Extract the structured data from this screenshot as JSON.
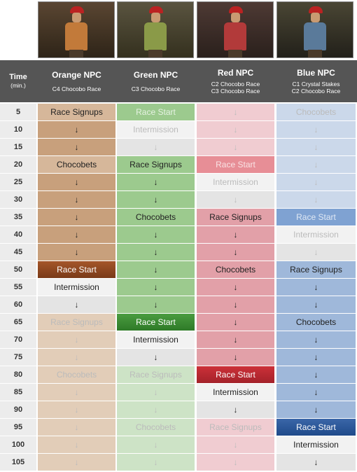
{
  "header": {
    "time_label": "Time",
    "time_unit": "(min.)",
    "npcs": [
      {
        "name": "Orange NPC",
        "races": [
          "C4 Chocobo Race"
        ],
        "icon": "orange-npc-portrait"
      },
      {
        "name": "Green NPC",
        "races": [
          "C3 Chocobo Race"
        ],
        "icon": "green-npc-portrait"
      },
      {
        "name": "Red NPC",
        "races": [
          "C2 Chocobo Race",
          "C3 Chocobo Race"
        ],
        "icon": "red-npc-portrait"
      },
      {
        "name": "Blue NPC",
        "races": [
          "C1 Crystal Stakes",
          "C2 Chocobo Race"
        ],
        "icon": "blue-npc-portrait"
      }
    ]
  },
  "colors": {
    "header_bg": "#555555",
    "orange": "#c8a07c",
    "green": "#9cca8e",
    "red": "#e2a0a8",
    "blue": "#9fb8da",
    "highlight_orange": "#8c4a24",
    "highlight_green": "#3d8a36",
    "highlight_red": "#b8262f",
    "highlight_blue": "#2a5290"
  },
  "rows": [
    {
      "time": "5",
      "cells": [
        "Race Signups",
        "Race Start",
        "↓",
        "Chocobets"
      ]
    },
    {
      "time": "10",
      "cells": [
        "↓",
        "Intermission",
        "↓",
        "↓"
      ]
    },
    {
      "time": "15",
      "cells": [
        "↓",
        "↓",
        "↓",
        "↓"
      ]
    },
    {
      "time": "20",
      "cells": [
        "Chocobets",
        "Race Signups",
        "Race Start",
        "↓"
      ]
    },
    {
      "time": "25",
      "cells": [
        "↓",
        "↓",
        "Intermission",
        "↓"
      ]
    },
    {
      "time": "30",
      "cells": [
        "↓",
        "↓",
        "↓",
        "↓"
      ]
    },
    {
      "time": "35",
      "cells": [
        "↓",
        "Chocobets",
        "Race Signups",
        "Race Start"
      ]
    },
    {
      "time": "40",
      "cells": [
        "↓",
        "↓",
        "↓",
        "Intermission"
      ]
    },
    {
      "time": "45",
      "cells": [
        "↓",
        "↓",
        "↓",
        "↓"
      ]
    },
    {
      "time": "50",
      "cells": [
        "Race Start",
        "↓",
        "Chocobets",
        "Race Signups"
      ]
    },
    {
      "time": "55",
      "cells": [
        "Intermission",
        "↓",
        "↓",
        "↓"
      ]
    },
    {
      "time": "60",
      "cells": [
        "↓",
        "↓",
        "↓",
        "↓"
      ]
    },
    {
      "time": "65",
      "cells": [
        "Race Signups",
        "Race Start",
        "↓",
        "Chocobets"
      ]
    },
    {
      "time": "70",
      "cells": [
        "↓",
        "Intermission",
        "↓",
        "↓"
      ]
    },
    {
      "time": "75",
      "cells": [
        "↓",
        "↓",
        "↓",
        "↓"
      ]
    },
    {
      "time": "80",
      "cells": [
        "Chocobets",
        "Race Signups",
        "Race Start",
        "↓"
      ]
    },
    {
      "time": "85",
      "cells": [
        "↓",
        "↓",
        "Intermission",
        "↓"
      ]
    },
    {
      "time": "90",
      "cells": [
        "↓",
        "↓",
        "↓",
        "↓"
      ]
    },
    {
      "time": "95",
      "cells": [
        "↓",
        "Chocobets",
        "Race Signups",
        "Race Start"
      ]
    },
    {
      "time": "100",
      "cells": [
        "↓",
        "↓",
        "↓",
        "Intermission"
      ]
    },
    {
      "time": "105",
      "cells": [
        "↓",
        "↓",
        "↓",
        "↓"
      ]
    }
  ]
}
